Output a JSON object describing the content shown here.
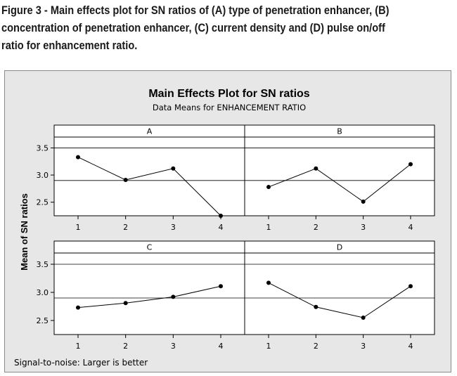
{
  "caption": "Figure 3 - Main effects plot for SN ratios of (A) type of penetration enhancer, (B) concentration of penetration enhancer, (C) current density and (D) pulse on/off ratio for enhancement ratio.",
  "chart_data": {
    "type": "line",
    "title": "Main Effects Plot for SN ratios",
    "subtitle": "Data Means for ENHANCEMENT RATIO",
    "ylabel": "Mean of SN ratios",
    "footnote": "Signal-to-noise: Larger is better",
    "ylim": [
      2.25,
      3.7
    ],
    "yticks": [
      "2.5",
      "3.0",
      "3.5"
    ],
    "categories": [
      "1",
      "2",
      "3",
      "4"
    ],
    "reference_line": 2.9,
    "reference_lines": [
      3.5
    ],
    "panels": [
      {
        "name": "A",
        "values": [
          3.33,
          2.91,
          3.12,
          2.25
        ]
      },
      {
        "name": "B",
        "values": [
          2.78,
          3.12,
          2.51,
          3.2
        ]
      },
      {
        "name": "C",
        "values": [
          2.73,
          2.81,
          2.92,
          3.11
        ]
      },
      {
        "name": "D",
        "values": [
          3.17,
          2.74,
          2.55,
          3.11
        ]
      }
    ]
  }
}
